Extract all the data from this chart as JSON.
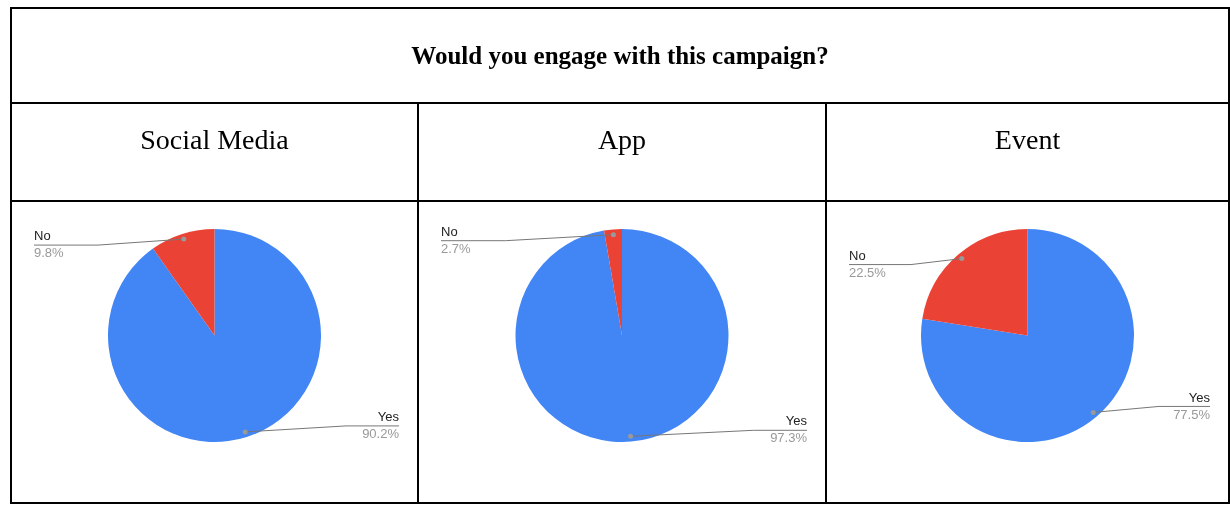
{
  "chart_data": [
    {
      "type": "other",
      "title": "Would you engage with this campaign?"
    },
    {
      "type": "pie",
      "title": "Social Media",
      "categories": [
        "Yes",
        "No"
      ],
      "values": [
        90.2,
        9.8
      ],
      "colors": [
        "#4285f4",
        "#ea4335"
      ],
      "value_labels": [
        "90.2%",
        "9.8%"
      ]
    },
    {
      "type": "pie",
      "title": "App",
      "categories": [
        "Yes",
        "No"
      ],
      "values": [
        97.3,
        2.7
      ],
      "colors": [
        "#4285f4",
        "#ea4335"
      ],
      "value_labels": [
        "97.3%",
        "2.7%"
      ]
    },
    {
      "type": "pie",
      "title": "Event",
      "categories": [
        "Yes",
        "No"
      ],
      "values": [
        77.5,
        22.5
      ],
      "colors": [
        "#4285f4",
        "#ea4335"
      ],
      "value_labels": [
        "77.5%",
        "22.5%"
      ]
    }
  ]
}
